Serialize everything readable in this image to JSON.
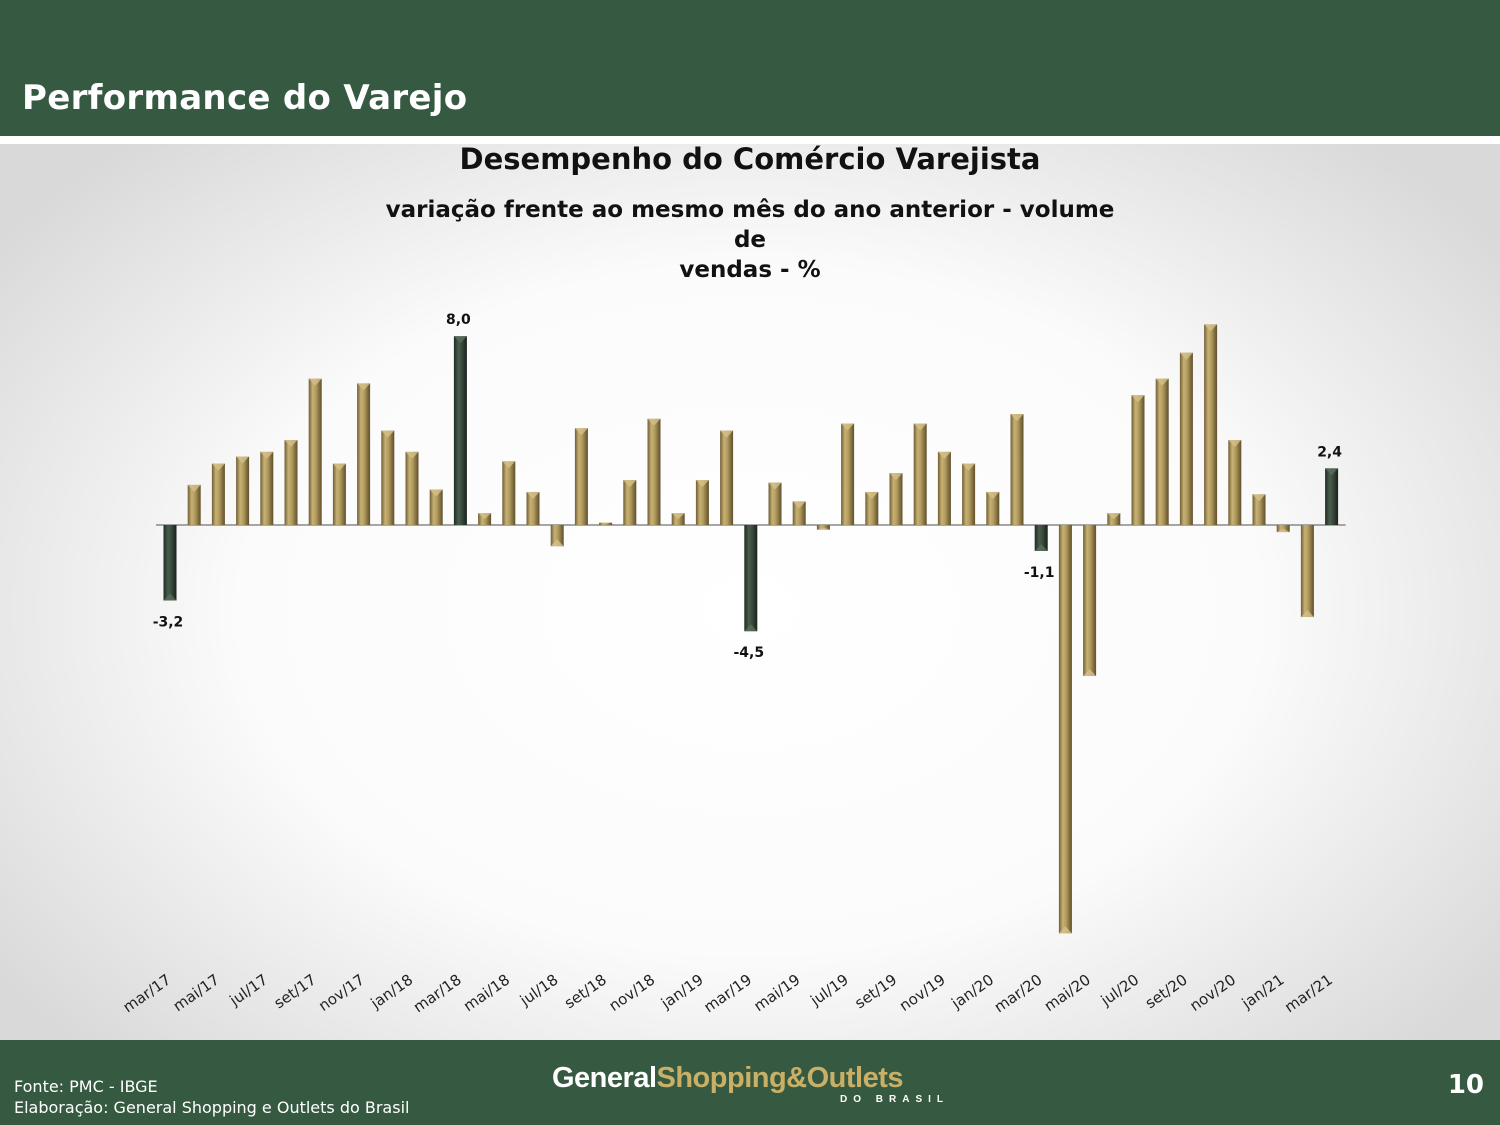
{
  "header": {
    "title": "Performance do Varejo"
  },
  "footer": {
    "source_line1": "Fonte: PMC - IBGE",
    "source_line2": "Elaboração: General Shopping e Outlets do Brasil",
    "logo_part1": "General",
    "logo_part2": "Shopping&Outlets",
    "logo_sub": "DO BRASIL",
    "page_number": "10"
  },
  "colors": {
    "header_bg": "#355a41",
    "bar_gold": "#b09a5e",
    "bar_dark": "#34473a"
  },
  "chart_data": {
    "type": "bar",
    "title": "Desempenho do Comércio Varejista",
    "subtitle_line1": "variação frente ao mesmo mês do ano anterior - volume de",
    "subtitle_line2": "vendas - %",
    "categories": [
      "mar/17",
      "abr/17",
      "mai/17",
      "jun/17",
      "jul/17",
      "ago/17",
      "set/17",
      "out/17",
      "nov/17",
      "dez/17",
      "jan/18",
      "fev/18",
      "mar/18",
      "abr/18",
      "mai/18",
      "jun/18",
      "jul/18",
      "ago/18",
      "set/18",
      "out/18",
      "nov/18",
      "dez/18",
      "jan/19",
      "fev/19",
      "mar/19",
      "abr/19",
      "mai/19",
      "jun/19",
      "jul/19",
      "ago/19",
      "set/19",
      "out/19",
      "nov/19",
      "dez/19",
      "jan/20",
      "fev/20",
      "mar/20",
      "abr/20",
      "mai/20",
      "jun/20",
      "jul/20",
      "ago/20",
      "set/20",
      "out/20",
      "nov/20",
      "dez/20",
      "jan/21",
      "fev/21",
      "mar/21"
    ],
    "tick_labels": [
      "mar/17",
      "mai/17",
      "jul/17",
      "set/17",
      "nov/17",
      "jan/18",
      "mar/18",
      "mai/18",
      "jul/18",
      "set/18",
      "nov/18",
      "jan/19",
      "mar/19",
      "mai/19",
      "jul/19",
      "set/19",
      "nov/19",
      "jan/20",
      "mar/20",
      "mai/20",
      "jul/20",
      "set/20",
      "nov/20",
      "jan/21",
      "mar/21"
    ],
    "values": [
      -3.2,
      1.7,
      2.6,
      2.9,
      3.1,
      3.6,
      6.2,
      2.6,
      6.0,
      4.0,
      3.1,
      1.5,
      8.0,
      0.5,
      2.7,
      1.4,
      -0.9,
      4.1,
      0.1,
      1.9,
      4.5,
      0.5,
      1.9,
      4.0,
      -4.5,
      1.8,
      1.0,
      -0.2,
      4.3,
      1.4,
      2.2,
      4.3,
      3.1,
      2.6,
      1.4,
      4.7,
      -1.1,
      -17.3,
      -6.4,
      0.5,
      5.5,
      6.2,
      7.3,
      8.5,
      3.6,
      1.3,
      -0.3,
      -3.9,
      2.4
    ],
    "highlighted": [
      "mar/17",
      "mar/18",
      "mar/19",
      "mar/20",
      "mar/21"
    ],
    "data_labels": [
      {
        "category": "mar/17",
        "text": "-3,2"
      },
      {
        "category": "mar/18",
        "text": "8,0"
      },
      {
        "category": "mar/19",
        "text": "-4,5"
      },
      {
        "category": "mar/20",
        "text": "-1,1"
      },
      {
        "category": "mar/21",
        "text": "2,4"
      }
    ],
    "ylim": [
      -17.3,
      8.5
    ],
    "grid": false,
    "legend": "none"
  }
}
